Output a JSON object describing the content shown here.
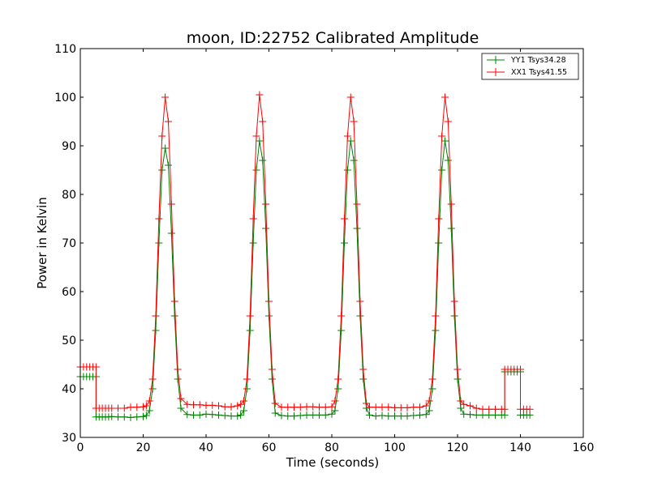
{
  "chart_data": {
    "type": "line",
    "title": "moon, ID:22752 Calibrated Amplitude",
    "xlabel": "Time (seconds)",
    "ylabel": "Power in Kelvin",
    "xlim": [
      0,
      160
    ],
    "ylim": [
      30,
      110
    ],
    "xticks": [
      "0",
      "20",
      "40",
      "60",
      "80",
      "100",
      "120",
      "140",
      "160"
    ],
    "yticks": [
      "30",
      "40",
      "50",
      "60",
      "70",
      "80",
      "90",
      "100",
      "110"
    ],
    "grid": false,
    "legend_position": "top-right",
    "marker": "+",
    "series": [
      {
        "name": "YY1 Tsys34.28",
        "color": "#008000",
        "x": [
          0,
          1,
          2,
          3,
          4,
          5,
          5,
          6,
          7,
          8,
          9,
          10,
          12,
          14,
          16,
          18,
          20,
          21,
          22,
          23,
          24,
          25,
          26,
          27,
          28,
          29,
          30,
          31,
          32,
          34,
          36,
          38,
          40,
          42,
          44,
          46,
          48,
          50,
          51,
          52,
          53,
          54,
          55,
          56,
          57,
          58,
          59,
          60,
          61,
          62,
          64,
          66,
          68,
          70,
          72,
          74,
          76,
          78,
          80,
          81,
          82,
          83,
          84,
          85,
          86,
          87,
          88,
          89,
          90,
          91,
          92,
          94,
          96,
          98,
          100,
          102,
          104,
          106,
          108,
          110,
          111,
          112,
          113,
          114,
          115,
          116,
          117,
          118,
          119,
          120,
          121,
          122,
          124,
          126,
          128,
          130,
          132,
          134,
          135,
          135,
          136,
          137,
          138,
          139,
          140,
          140,
          141,
          142,
          143
        ],
        "y": [
          42.5,
          42.5,
          42.5,
          42.5,
          42.5,
          42.5,
          34.2,
          34.2,
          34.2,
          34.2,
          34.2,
          34.3,
          34.2,
          34.2,
          34.1,
          34.2,
          34.3,
          34.5,
          35.5,
          40,
          52,
          70,
          85,
          89.5,
          86,
          72,
          55,
          42,
          36,
          34.7,
          34.6,
          34.6,
          34.8,
          34.7,
          34.6,
          34.5,
          34.4,
          34.4,
          34.6,
          35.5,
          40,
          52,
          70,
          85,
          91,
          87,
          73,
          55,
          42,
          35,
          34.5,
          34.4,
          34.4,
          34.5,
          34.6,
          34.6,
          34.6,
          34.6,
          34.8,
          35.5,
          40,
          52,
          70,
          85,
          91,
          87,
          73,
          55,
          42,
          36,
          34.6,
          34.4,
          34.5,
          34.4,
          34.4,
          34.4,
          34.4,
          34.5,
          34.6,
          34.7,
          35.5,
          40,
          52,
          70,
          85,
          91,
          87,
          73,
          55,
          42,
          36,
          34.8,
          34.7,
          34.6,
          34.6,
          34.6,
          34.6,
          34.6,
          34.6,
          43.5,
          43.5,
          43.5,
          43.5,
          43.5,
          43.5,
          34.6,
          34.6,
          34.6,
          34.6
        ],
        "values": [
          42.5,
          42.5,
          42.5,
          42.5,
          42.5,
          42.5,
          34.2,
          34.2,
          34.2,
          34.2,
          34.2,
          34.3,
          34.2,
          34.2,
          34.1,
          34.2,
          34.3,
          34.5,
          35.5,
          40,
          52,
          70,
          85,
          89.5,
          86,
          72,
          55,
          42,
          36,
          34.7,
          34.6,
          34.6,
          34.8,
          34.7,
          34.6,
          34.5,
          34.4,
          34.4,
          34.6,
          35.5,
          40,
          52,
          70,
          85,
          91,
          87,
          73,
          55,
          42,
          35,
          34.5,
          34.4,
          34.4,
          34.5,
          34.6,
          34.6,
          34.6,
          34.6,
          34.8,
          35.5,
          40,
          52,
          70,
          85,
          91,
          87,
          73,
          55,
          42,
          36,
          34.6,
          34.4,
          34.5,
          34.4,
          34.4,
          34.4,
          34.4,
          34.5,
          34.6,
          34.7,
          35.5,
          40,
          52,
          70,
          85,
          91,
          87,
          73,
          55,
          42,
          36,
          34.8,
          34.7,
          34.6,
          34.6,
          34.6,
          34.6,
          34.6,
          34.6,
          43.5,
          43.5,
          43.5,
          43.5,
          43.5,
          43.5,
          34.6,
          34.6,
          34.6,
          34.6
        ]
      },
      {
        "name": "XX1 Tsys41.55",
        "color": "#ff0000",
        "x": [
          0,
          1,
          2,
          3,
          4,
          5,
          5,
          6,
          7,
          8,
          9,
          10,
          12,
          14,
          16,
          18,
          20,
          21,
          22,
          23,
          24,
          25,
          26,
          27,
          28,
          29,
          30,
          31,
          32,
          34,
          36,
          38,
          40,
          42,
          44,
          46,
          48,
          50,
          51,
          52,
          53,
          54,
          55,
          56,
          57,
          58,
          59,
          60,
          61,
          62,
          64,
          66,
          68,
          70,
          72,
          74,
          76,
          78,
          80,
          81,
          82,
          83,
          84,
          85,
          86,
          87,
          88,
          89,
          90,
          91,
          92,
          94,
          96,
          98,
          100,
          102,
          104,
          106,
          108,
          110,
          111,
          112,
          113,
          114,
          115,
          116,
          117,
          118,
          119,
          120,
          121,
          122,
          124,
          126,
          128,
          130,
          132,
          134,
          135,
          135,
          136,
          137,
          138,
          139,
          140,
          140,
          141,
          142,
          143
        ],
        "y": [
          44.5,
          44.5,
          44.5,
          44.5,
          44.5,
          44.5,
          36,
          36,
          36,
          36,
          36,
          36,
          36,
          36,
          36.2,
          36.2,
          36.3,
          36.5,
          37.5,
          42,
          55,
          75,
          92,
          100,
          95,
          78,
          58,
          44,
          38,
          36.8,
          36.7,
          36.7,
          36.6,
          36.6,
          36.5,
          36.3,
          36.3,
          36.5,
          36.8,
          37.5,
          42,
          55,
          75,
          92,
          100.5,
          95,
          78,
          58,
          44,
          37,
          36.2,
          36.2,
          36.2,
          36.2,
          36.3,
          36.3,
          36.2,
          36.2,
          36.3,
          37.5,
          42,
          55,
          75,
          92,
          100,
          95,
          78,
          58,
          44,
          37,
          36.2,
          36.2,
          36.2,
          36.2,
          36.1,
          36.1,
          36.1,
          36.2,
          36.2,
          36.5,
          37.5,
          42,
          55,
          75,
          92,
          100,
          95,
          78,
          58,
          44,
          37.5,
          36.8,
          36.5,
          36,
          35.8,
          35.8,
          35.8,
          35.8,
          35.8,
          44,
          44,
          44,
          44,
          44,
          44,
          35.8,
          35.8,
          35.8,
          35.8
        ]
      }
    ]
  }
}
